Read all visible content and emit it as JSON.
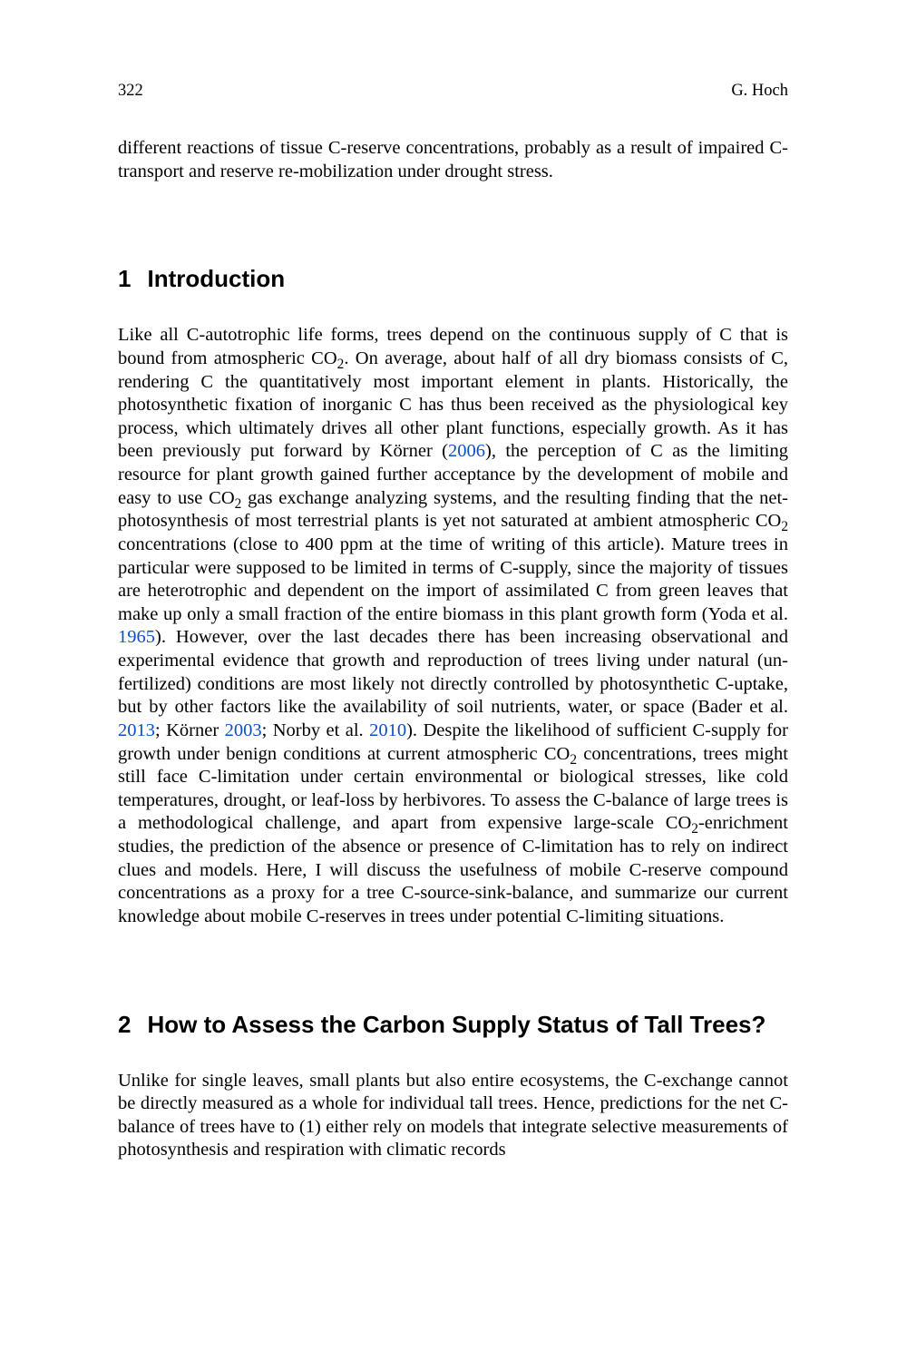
{
  "runningHead": {
    "pageNumber": "322",
    "author": "G. Hoch"
  },
  "abstractTail": {
    "text": "different reactions of tissue C-reserve concentrations, probably as a result of impaired C-transport and reserve re-mobilization under drought stress."
  },
  "sections": [
    {
      "number": "1",
      "title": "Introduction"
    },
    {
      "number": "2",
      "title": "How to Assess the Carbon Supply Status of Tall Trees?"
    }
  ],
  "introParagraph": {
    "runs": [
      {
        "t": "Like all C-autotrophic life forms, trees depend on the continuous supply of C that is bound from atmospheric CO"
      },
      {
        "t": "2",
        "sub": true
      },
      {
        "t": ". On average, about half of all dry biomass consists of C, rendering C the quantitatively most important element in plants. Historically, the photosynthetic fixation of inorganic C has thus been received as the physiological key process, which ultimately drives all other plant functions, especially growth. As it has been previously put forward by Körner ("
      },
      {
        "t": "2006",
        "cite": true
      },
      {
        "t": "), the perception of C as the limiting resource for plant growth gained further acceptance by the development of mobile and easy to use CO"
      },
      {
        "t": "2",
        "sub": true
      },
      {
        "t": " gas exchange analyzing systems, and the resulting finding that the net-photosynthesis of most terrestrial plants is yet not saturated at ambient atmospheric CO"
      },
      {
        "t": "2",
        "sub": true
      },
      {
        "t": " concentrations (close to 400 ppm at the time of writing of this article). Mature trees in particular were supposed to be limited in terms of C-supply, since the majority of tissues are heterotrophic and dependent on the import of assimilated C from green leaves that make up only a small fraction of the entire biomass in this plant growth form (Yoda et al. "
      },
      {
        "t": "1965",
        "cite": true
      },
      {
        "t": "). However, over the last decades there has been increasing observational and experimental evidence that growth and reproduction of trees living under natural (un-fertilized) conditions are most likely not directly controlled by photosynthetic C-uptake, but by other factors like the availability of soil nutrients, water, or space (Bader et al. "
      },
      {
        "t": "2013",
        "cite": true
      },
      {
        "t": "; Körner "
      },
      {
        "t": "2003",
        "cite": true
      },
      {
        "t": "; Norby et al. "
      },
      {
        "t": "2010",
        "cite": true
      },
      {
        "t": "). Despite the likelihood of sufficient C-supply for growth under benign conditions at current atmospheric CO"
      },
      {
        "t": "2",
        "sub": true
      },
      {
        "t": " concentrations, trees might still face C-limitation under certain environmental or biological stresses, like cold temperatures, drought, or leaf-loss by herbivores. To assess the C-balance of large trees is a methodological challenge, and apart from expensive large-scale CO"
      },
      {
        "t": "2",
        "sub": true
      },
      {
        "t": "-enrichment studies, the prediction of the absence or presence of C-limitation has to rely on indirect clues and models. Here, I will discuss the usefulness of mobile C-reserve compound concentrations as a proxy for a tree C-source-sink-balance, and summarize our current knowledge about mobile C-reserves in trees under potential C-limiting situations."
      }
    ]
  },
  "section2Paragraph": {
    "text": "Unlike for single leaves, small plants but also entire ecosystems, the C-exchange cannot be directly measured as a whole for individual tall trees. Hence, predictions for the net C-balance of trees have to (1) either rely on models that integrate selective measurements of photosynthesis and respiration with climatic records"
  },
  "style": {
    "citationColor": "#0c4fc4",
    "bodyFontSizePx": 20.5,
    "headingFontSizePx": 26,
    "runningHeadFontSizePx": 18.5,
    "pageBackground": "#ffffff",
    "textColor": "#000000",
    "pageWidthPx": 989,
    "pageHeightPx": 1500
  }
}
